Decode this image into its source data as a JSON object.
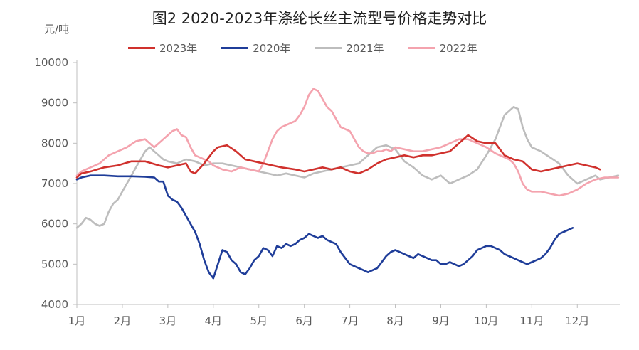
{
  "chart_data": {
    "type": "line",
    "title": "图2 2020-2023年涤纶长丝主流型号价格走势对比",
    "ylabel": "元/吨",
    "xlabel": "",
    "ylim": [
      4000,
      10000
    ],
    "yticks": [
      "4000",
      "5000",
      "6000",
      "7000",
      "8000",
      "9000",
      "10000"
    ],
    "categories": [
      "1月",
      "2月",
      "3月",
      "4月",
      "5月",
      "6月",
      "7月",
      "8月",
      "9月",
      "10月",
      "11月",
      "12月"
    ],
    "x_unit": "month",
    "grid": false,
    "legend_position": "top",
    "series": [
      {
        "name": "2023年",
        "color": "#D0312D",
        "points": [
          [
            1.0,
            7150
          ],
          [
            1.1,
            7250
          ],
          [
            1.3,
            7300
          ],
          [
            1.6,
            7400
          ],
          [
            1.9,
            7450
          ],
          [
            2.2,
            7550
          ],
          [
            2.5,
            7550
          ],
          [
            2.8,
            7450
          ],
          [
            3.0,
            7400
          ],
          [
            3.2,
            7450
          ],
          [
            3.4,
            7500
          ],
          [
            3.5,
            7300
          ],
          [
            3.6,
            7250
          ],
          [
            3.8,
            7500
          ],
          [
            4.0,
            7800
          ],
          [
            4.1,
            7900
          ],
          [
            4.3,
            7950
          ],
          [
            4.5,
            7800
          ],
          [
            4.7,
            7600
          ],
          [
            4.9,
            7550
          ],
          [
            5.1,
            7500
          ],
          [
            5.3,
            7450
          ],
          [
            5.5,
            7400
          ],
          [
            5.8,
            7350
          ],
          [
            6.0,
            7300
          ],
          [
            6.2,
            7350
          ],
          [
            6.4,
            7400
          ],
          [
            6.6,
            7350
          ],
          [
            6.8,
            7400
          ],
          [
            7.0,
            7300
          ],
          [
            7.2,
            7250
          ],
          [
            7.4,
            7350
          ],
          [
            7.6,
            7500
          ],
          [
            7.8,
            7600
          ],
          [
            8.0,
            7650
          ],
          [
            8.2,
            7700
          ],
          [
            8.4,
            7650
          ],
          [
            8.6,
            7700
          ],
          [
            8.8,
            7700
          ],
          [
            9.0,
            7750
          ],
          [
            9.2,
            7800
          ],
          [
            9.4,
            8000
          ],
          [
            9.6,
            8200
          ],
          [
            9.8,
            8050
          ],
          [
            10.0,
            8000
          ],
          [
            10.2,
            8000
          ],
          [
            10.4,
            7700
          ],
          [
            10.6,
            7600
          ],
          [
            10.8,
            7550
          ],
          [
            11.0,
            7350
          ],
          [
            11.2,
            7300
          ],
          [
            11.4,
            7350
          ],
          [
            11.6,
            7400
          ],
          [
            11.8,
            7450
          ],
          [
            12.0,
            7500
          ],
          [
            12.2,
            7450
          ],
          [
            12.4,
            7400
          ],
          [
            12.5,
            7350
          ]
        ]
      },
      {
        "name": "2020年",
        "color": "#1F3D99",
        "points": [
          [
            1.0,
            7100
          ],
          [
            1.1,
            7150
          ],
          [
            1.3,
            7200
          ],
          [
            1.6,
            7200
          ],
          [
            1.9,
            7180
          ],
          [
            2.2,
            7180
          ],
          [
            2.5,
            7170
          ],
          [
            2.7,
            7150
          ],
          [
            2.8,
            7050
          ],
          [
            2.9,
            7050
          ],
          [
            3.0,
            6700
          ],
          [
            3.1,
            6600
          ],
          [
            3.2,
            6550
          ],
          [
            3.3,
            6400
          ],
          [
            3.4,
            6200
          ],
          [
            3.5,
            6000
          ],
          [
            3.6,
            5800
          ],
          [
            3.7,
            5500
          ],
          [
            3.8,
            5100
          ],
          [
            3.9,
            4800
          ],
          [
            4.0,
            4650
          ],
          [
            4.1,
            5000
          ],
          [
            4.2,
            5350
          ],
          [
            4.3,
            5300
          ],
          [
            4.4,
            5100
          ],
          [
            4.5,
            5000
          ],
          [
            4.6,
            4800
          ],
          [
            4.7,
            4750
          ],
          [
            4.8,
            4900
          ],
          [
            4.9,
            5100
          ],
          [
            5.0,
            5200
          ],
          [
            5.1,
            5400
          ],
          [
            5.2,
            5350
          ],
          [
            5.3,
            5200
          ],
          [
            5.4,
            5450
          ],
          [
            5.5,
            5400
          ],
          [
            5.6,
            5500
          ],
          [
            5.7,
            5450
          ],
          [
            5.8,
            5500
          ],
          [
            5.9,
            5600
          ],
          [
            6.0,
            5650
          ],
          [
            6.1,
            5750
          ],
          [
            6.2,
            5700
          ],
          [
            6.3,
            5650
          ],
          [
            6.4,
            5700
          ],
          [
            6.5,
            5600
          ],
          [
            6.6,
            5550
          ],
          [
            6.7,
            5500
          ],
          [
            6.8,
            5300
          ],
          [
            6.9,
            5150
          ],
          [
            7.0,
            5000
          ],
          [
            7.1,
            4950
          ],
          [
            7.2,
            4900
          ],
          [
            7.3,
            4850
          ],
          [
            7.4,
            4800
          ],
          [
            7.5,
            4850
          ],
          [
            7.6,
            4900
          ],
          [
            7.7,
            5050
          ],
          [
            7.8,
            5200
          ],
          [
            7.9,
            5300
          ],
          [
            8.0,
            5350
          ],
          [
            8.1,
            5300
          ],
          [
            8.2,
            5250
          ],
          [
            8.3,
            5200
          ],
          [
            8.4,
            5150
          ],
          [
            8.5,
            5250
          ],
          [
            8.6,
            5200
          ],
          [
            8.7,
            5150
          ],
          [
            8.8,
            5100
          ],
          [
            8.9,
            5100
          ],
          [
            9.0,
            5000
          ],
          [
            9.1,
            5000
          ],
          [
            9.2,
            5050
          ],
          [
            9.3,
            5000
          ],
          [
            9.4,
            4950
          ],
          [
            9.5,
            5000
          ],
          [
            9.6,
            5100
          ],
          [
            9.7,
            5200
          ],
          [
            9.8,
            5350
          ],
          [
            9.9,
            5400
          ],
          [
            10.0,
            5450
          ],
          [
            10.1,
            5450
          ],
          [
            10.2,
            5400
          ],
          [
            10.3,
            5350
          ],
          [
            10.4,
            5250
          ],
          [
            10.5,
            5200
          ],
          [
            10.6,
            5150
          ],
          [
            10.7,
            5100
          ],
          [
            10.8,
            5050
          ],
          [
            10.9,
            5000
          ],
          [
            11.0,
            5050
          ],
          [
            11.1,
            5100
          ],
          [
            11.2,
            5150
          ],
          [
            11.3,
            5250
          ],
          [
            11.4,
            5400
          ],
          [
            11.5,
            5600
          ],
          [
            11.6,
            5750
          ],
          [
            11.7,
            5800
          ],
          [
            11.8,
            5850
          ],
          [
            11.9,
            5900
          ]
        ]
      },
      {
        "name": "2021年",
        "color": "#BDBDBD",
        "points": [
          [
            1.0,
            5900
          ],
          [
            1.1,
            6000
          ],
          [
            1.2,
            6150
          ],
          [
            1.3,
            6100
          ],
          [
            1.4,
            6000
          ],
          [
            1.5,
            5950
          ],
          [
            1.6,
            6000
          ],
          [
            1.7,
            6300
          ],
          [
            1.8,
            6500
          ],
          [
            1.9,
            6600
          ],
          [
            2.0,
            6800
          ],
          [
            2.1,
            7000
          ],
          [
            2.2,
            7200
          ],
          [
            2.3,
            7400
          ],
          [
            2.4,
            7600
          ],
          [
            2.5,
            7800
          ],
          [
            2.6,
            7900
          ],
          [
            2.7,
            7800
          ],
          [
            2.8,
            7700
          ],
          [
            2.9,
            7600
          ],
          [
            3.0,
            7550
          ],
          [
            3.2,
            7500
          ],
          [
            3.4,
            7600
          ],
          [
            3.6,
            7550
          ],
          [
            3.8,
            7450
          ],
          [
            4.0,
            7500
          ],
          [
            4.2,
            7500
          ],
          [
            4.4,
            7450
          ],
          [
            4.6,
            7400
          ],
          [
            4.8,
            7350
          ],
          [
            5.0,
            7300
          ],
          [
            5.2,
            7250
          ],
          [
            5.4,
            7200
          ],
          [
            5.6,
            7250
          ],
          [
            5.8,
            7200
          ],
          [
            6.0,
            7150
          ],
          [
            6.2,
            7250
          ],
          [
            6.4,
            7300
          ],
          [
            6.6,
            7350
          ],
          [
            6.8,
            7400
          ],
          [
            7.0,
            7450
          ],
          [
            7.2,
            7500
          ],
          [
            7.4,
            7700
          ],
          [
            7.6,
            7900
          ],
          [
            7.8,
            7950
          ],
          [
            8.0,
            7850
          ],
          [
            8.2,
            7550
          ],
          [
            8.4,
            7400
          ],
          [
            8.6,
            7200
          ],
          [
            8.8,
            7100
          ],
          [
            9.0,
            7200
          ],
          [
            9.2,
            7000
          ],
          [
            9.4,
            7100
          ],
          [
            9.6,
            7200
          ],
          [
            9.8,
            7350
          ],
          [
            10.0,
            7700
          ],
          [
            10.2,
            8100
          ],
          [
            10.4,
            8700
          ],
          [
            10.6,
            8900
          ],
          [
            10.7,
            8850
          ],
          [
            10.8,
            8400
          ],
          [
            10.9,
            8100
          ],
          [
            11.0,
            7900
          ],
          [
            11.2,
            7800
          ],
          [
            11.4,
            7650
          ],
          [
            11.6,
            7500
          ],
          [
            11.8,
            7200
          ],
          [
            12.0,
            7000
          ],
          [
            12.2,
            7100
          ],
          [
            12.4,
            7200
          ],
          [
            12.5,
            7100
          ],
          [
            12.7,
            7150
          ],
          [
            12.9,
            7200
          ]
        ]
      },
      {
        "name": "2022年",
        "color": "#F4A3AE",
        "points": [
          [
            1.0,
            7200
          ],
          [
            1.1,
            7300
          ],
          [
            1.3,
            7400
          ],
          [
            1.5,
            7500
          ],
          [
            1.7,
            7700
          ],
          [
            1.9,
            7800
          ],
          [
            2.1,
            7900
          ],
          [
            2.3,
            8050
          ],
          [
            2.5,
            8100
          ],
          [
            2.7,
            7900
          ],
          [
            2.9,
            8100
          ],
          [
            3.0,
            8200
          ],
          [
            3.1,
            8300
          ],
          [
            3.2,
            8350
          ],
          [
            3.3,
            8200
          ],
          [
            3.4,
            8150
          ],
          [
            3.5,
            7900
          ],
          [
            3.6,
            7700
          ],
          [
            3.7,
            7650
          ],
          [
            3.8,
            7600
          ],
          [
            3.9,
            7550
          ],
          [
            4.0,
            7450
          ],
          [
            4.2,
            7350
          ],
          [
            4.4,
            7300
          ],
          [
            4.6,
            7400
          ],
          [
            4.8,
            7350
          ],
          [
            5.0,
            7300
          ],
          [
            5.1,
            7500
          ],
          [
            5.2,
            7800
          ],
          [
            5.3,
            8100
          ],
          [
            5.4,
            8300
          ],
          [
            5.5,
            8400
          ],
          [
            5.6,
            8450
          ],
          [
            5.7,
            8500
          ],
          [
            5.8,
            8550
          ],
          [
            5.9,
            8700
          ],
          [
            6.0,
            8900
          ],
          [
            6.1,
            9200
          ],
          [
            6.2,
            9350
          ],
          [
            6.3,
            9300
          ],
          [
            6.4,
            9100
          ],
          [
            6.5,
            8900
          ],
          [
            6.6,
            8800
          ],
          [
            6.7,
            8600
          ],
          [
            6.8,
            8400
          ],
          [
            6.9,
            8350
          ],
          [
            7.0,
            8300
          ],
          [
            7.1,
            8100
          ],
          [
            7.2,
            7900
          ],
          [
            7.3,
            7800
          ],
          [
            7.4,
            7750
          ],
          [
            7.5,
            7750
          ],
          [
            7.6,
            7800
          ],
          [
            7.7,
            7800
          ],
          [
            7.8,
            7850
          ],
          [
            7.9,
            7800
          ],
          [
            8.0,
            7900
          ],
          [
            8.2,
            7850
          ],
          [
            8.4,
            7800
          ],
          [
            8.6,
            7800
          ],
          [
            8.8,
            7850
          ],
          [
            9.0,
            7900
          ],
          [
            9.2,
            8000
          ],
          [
            9.4,
            8100
          ],
          [
            9.6,
            8100
          ],
          [
            9.8,
            8000
          ],
          [
            10.0,
            7900
          ],
          [
            10.2,
            7750
          ],
          [
            10.4,
            7650
          ],
          [
            10.5,
            7600
          ],
          [
            10.6,
            7500
          ],
          [
            10.7,
            7300
          ],
          [
            10.8,
            7000
          ],
          [
            10.9,
            6850
          ],
          [
            11.0,
            6800
          ],
          [
            11.2,
            6800
          ],
          [
            11.4,
            6750
          ],
          [
            11.6,
            6700
          ],
          [
            11.8,
            6750
          ],
          [
            12.0,
            6850
          ],
          [
            12.2,
            7000
          ],
          [
            12.4,
            7100
          ],
          [
            12.6,
            7150
          ],
          [
            12.9,
            7150
          ]
        ]
      }
    ]
  }
}
